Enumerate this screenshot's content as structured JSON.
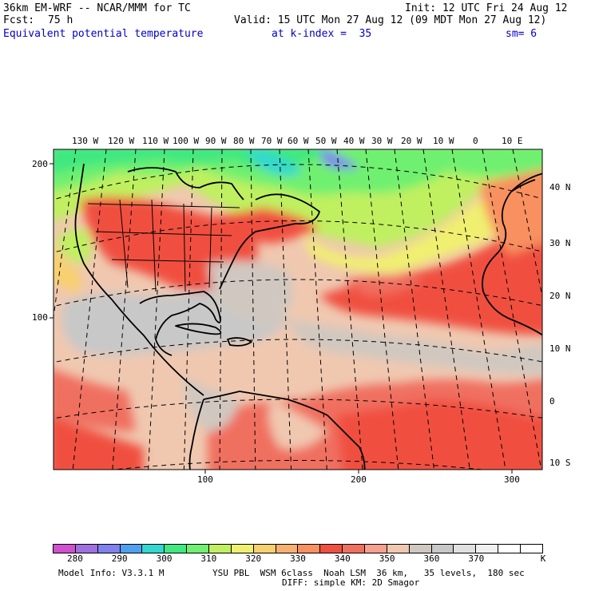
{
  "header": {
    "model_title": "36km EM-WRF -- NCAR/MMM for TC",
    "init": "Init: 12 UTC Fri 24 Aug 12",
    "fcst_label": "Fcst:",
    "fcst_hours": "75 h",
    "valid": "Valid: 15 UTC Mon 27 Aug 12 (09 MDT Mon 27 Aug 12)",
    "field_name": "Equivalent potential temperature",
    "level": "at k-index =  35",
    "smoothing": "sm= 6"
  },
  "map": {
    "top_lon_labels": [
      "130 W",
      "120 W",
      "110 W",
      "100 W",
      "90 W",
      "80 W",
      "70 W",
      "60 W",
      "50 W",
      "40 W",
      "30 W",
      "20 W",
      "10 W",
      "0",
      "10 E"
    ],
    "right_lat_labels": [
      "40 N",
      "30 N",
      "20 N",
      "10 N",
      "0",
      "10 S"
    ],
    "left_grid_labels": [
      "200",
      "100"
    ],
    "bottom_grid_labels": [
      "100",
      "200",
      "300"
    ],
    "colors": {
      "land_line": "#000000",
      "grid_line": "#000000"
    }
  },
  "colorbar": {
    "colors": [
      "#d050d0",
      "#a070e0",
      "#8080f0",
      "#50a0f0",
      "#30d8d0",
      "#40e880",
      "#70f070",
      "#c0f060",
      "#f0f070",
      "#f8d070",
      "#f8b070",
      "#f89060",
      "#f05040",
      "#f07060",
      "#f8a090",
      "#f0c8b0",
      "#d0c8c0",
      "#c8c8c8",
      "#e0e0e0",
      "#f0f0f0",
      "#ffffff",
      "#ffffff"
    ],
    "labels": [
      "280",
      "290",
      "300",
      "310",
      "320",
      "330",
      "340",
      "350",
      "360",
      "370"
    ],
    "unit": "K"
  },
  "footer": {
    "model_info": "Model Info: V3.3.1 M",
    "physics_line1": "YSU PBL  WSM 6class  Noah LSM  36 km,   35 levels,  180 sec",
    "physics_line2": "DIFF: simple KM: 2D Smagor"
  }
}
